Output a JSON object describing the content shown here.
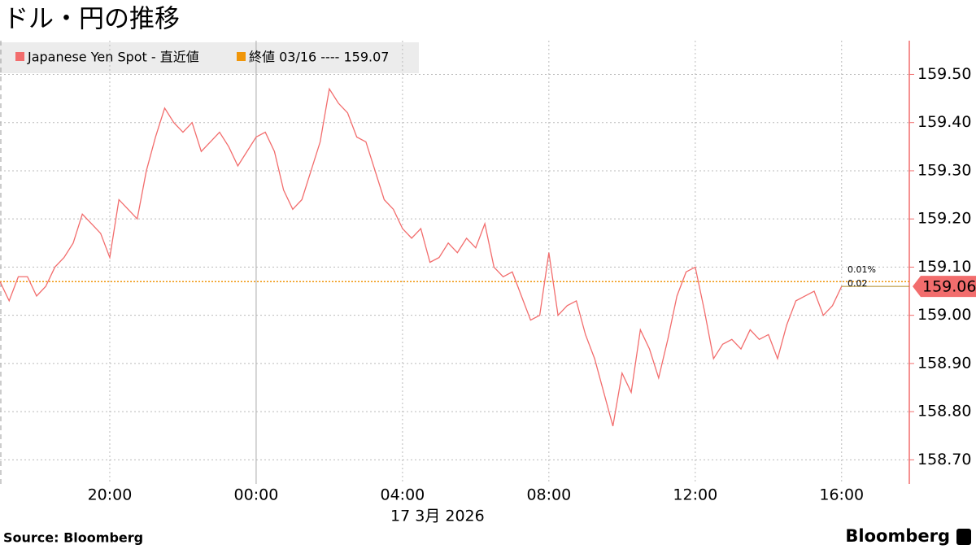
{
  "chart_data": {
    "type": "line",
    "title": "ドル・円の推移",
    "x": [
      -7,
      -6.75,
      -6.5,
      -6.25,
      -6,
      -5.75,
      -5.5,
      -5.25,
      -5,
      -4.75,
      -4.5,
      -4.25,
      -4,
      -3.75,
      -3.5,
      -3.25,
      -3,
      -2.75,
      -2.5,
      -2.25,
      -2,
      -1.75,
      -1.5,
      -1.25,
      -1,
      -0.75,
      -0.5,
      -0.25,
      0,
      0.25,
      0.5,
      0.75,
      1,
      1.25,
      1.5,
      1.75,
      2,
      2.25,
      2.5,
      2.75,
      3,
      3.25,
      3.5,
      3.75,
      4,
      4.25,
      4.5,
      4.75,
      5,
      5.25,
      5.5,
      5.75,
      6,
      6.25,
      6.5,
      6.75,
      7,
      7.25,
      7.5,
      7.75,
      8,
      8.25,
      8.5,
      8.75,
      9,
      9.25,
      9.5,
      9.75,
      10,
      10.25,
      10.5,
      10.75,
      11,
      11.25,
      11.5,
      11.75,
      12,
      12.25,
      12.5,
      12.75,
      13,
      13.25,
      13.5,
      13.75,
      14,
      14.25,
      14.5,
      14.75,
      15,
      15.25,
      15.5,
      15.75,
      16
    ],
    "series": [
      {
        "name": "Japanese Yen Spot - 直近値",
        "color": "#f26d6d",
        "values": [
          159.07,
          159.03,
          159.08,
          159.08,
          159.04,
          159.06,
          159.1,
          159.12,
          159.15,
          159.21,
          159.19,
          159.17,
          159.12,
          159.24,
          159.22,
          159.2,
          159.3,
          159.37,
          159.43,
          159.4,
          159.38,
          159.4,
          159.34,
          159.36,
          159.38,
          159.35,
          159.31,
          159.34,
          159.37,
          159.38,
          159.34,
          159.26,
          159.22,
          159.24,
          159.3,
          159.36,
          159.47,
          159.44,
          159.42,
          159.37,
          159.36,
          159.3,
          159.24,
          159.22,
          159.18,
          159.16,
          159.18,
          159.11,
          159.12,
          159.15,
          159.13,
          159.16,
          159.14,
          159.19,
          159.1,
          159.08,
          159.09,
          159.04,
          158.99,
          159.0,
          159.13,
          159.0,
          159.02,
          159.03,
          158.96,
          158.91,
          158.84,
          158.77,
          158.88,
          158.84,
          158.97,
          158.93,
          158.87,
          158.95,
          159.04,
          159.09,
          159.1,
          159.01,
          158.91,
          158.94,
          158.95,
          158.93,
          158.97,
          158.95,
          158.96,
          158.91,
          158.98,
          159.03,
          159.04,
          159.05,
          159.0,
          159.02,
          159.06
        ]
      }
    ],
    "reference_line": {
      "name": "終値 03/16 ---- 159.07",
      "value": 159.07,
      "color": "#f0960a"
    },
    "annotations": [
      "0.01%",
      "0.02"
    ],
    "xlim": [
      -7,
      17.85
    ],
    "xticks": [
      {
        "value": -4,
        "label": "20:00"
      },
      {
        "value": 0,
        "label": "00:00"
      },
      {
        "value": 4,
        "label": "04:00"
      },
      {
        "value": 8,
        "label": "08:00"
      },
      {
        "value": 12,
        "label": "12:00"
      },
      {
        "value": 16,
        "label": "16:00"
      }
    ],
    "x_date_label": "17 3月 2026",
    "ylim": [
      158.65,
      159.57
    ],
    "yticks": [
      {
        "value": 158.7,
        "label": "158.70"
      },
      {
        "value": 158.8,
        "label": "158.80"
      },
      {
        "value": 158.9,
        "label": "158.90"
      },
      {
        "value": 159.0,
        "label": "159.00"
      },
      {
        "value": 159.1,
        "label": "159.10"
      },
      {
        "value": 159.2,
        "label": "159.20"
      },
      {
        "value": 159.3,
        "label": "159.30"
      },
      {
        "value": 159.4,
        "label": "159.40"
      },
      {
        "value": 159.5,
        "label": "159.50"
      }
    ],
    "grid": true,
    "source": "Source:  Bloomberg",
    "brand": "Bloomberg"
  }
}
